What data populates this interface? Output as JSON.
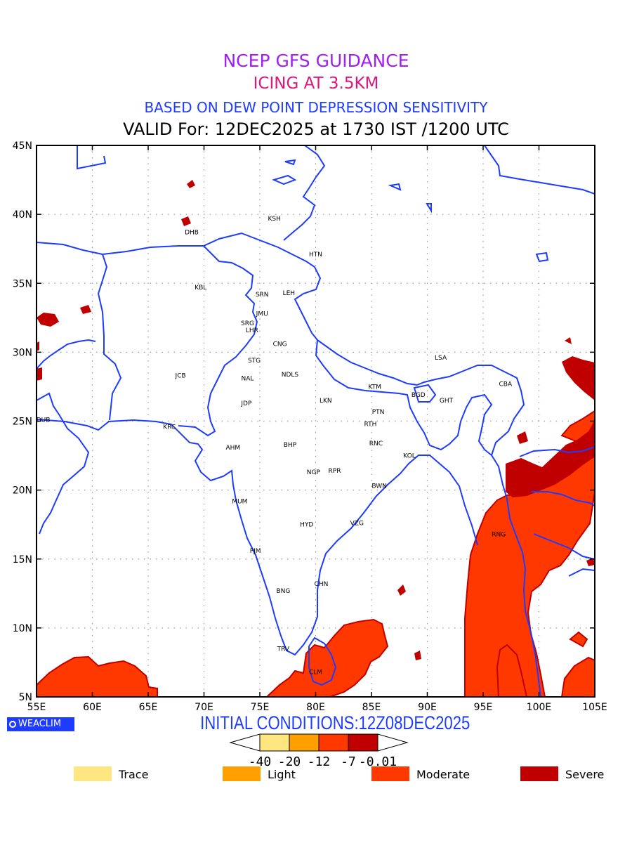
{
  "header": {
    "line1": "NCEP GFS GUIDANCE",
    "line2": "ICING AT 3.5KM",
    "line3": "BASED ON DEW POINT DEPRESSION SENSITIVITY",
    "line4": "VALID For: 12DEC2025 at 1730 IST /1200 UTC"
  },
  "map": {
    "lon_labels": [
      "55E",
      "60E",
      "65E",
      "70E",
      "75E",
      "80E",
      "85E",
      "90E",
      "95E",
      "100E",
      "105E"
    ],
    "lat_labels": [
      "5N",
      "10N",
      "15N",
      "20N",
      "25N",
      "30N",
      "35N",
      "40N",
      "45N"
    ],
    "lon_range": [
      55,
      105
    ],
    "lat_range": [
      5,
      45
    ],
    "grid": "dotted",
    "coast_color": "#1e3cff",
    "stations": [
      {
        "name": "KSH",
        "lon": 76.3,
        "lat": 39.7
      },
      {
        "name": "DHB",
        "lon": 68.9,
        "lat": 38.7
      },
      {
        "name": "HTN",
        "lon": 80.0,
        "lat": 37.1
      },
      {
        "name": "KBL",
        "lon": 69.7,
        "lat": 34.7
      },
      {
        "name": "SRN",
        "lon": 75.2,
        "lat": 34.2
      },
      {
        "name": "LEH",
        "lon": 77.6,
        "lat": 34.3
      },
      {
        "name": "JMU",
        "lon": 75.2,
        "lat": 32.8
      },
      {
        "name": "SRG",
        "lon": 73.9,
        "lat": 32.1
      },
      {
        "name": "LHR",
        "lon": 74.3,
        "lat": 31.6
      },
      {
        "name": "CNG",
        "lon": 76.8,
        "lat": 30.6
      },
      {
        "name": "STG",
        "lon": 74.5,
        "lat": 29.4
      },
      {
        "name": "LSA",
        "lon": 91.2,
        "lat": 29.6
      },
      {
        "name": "JCB",
        "lon": 67.9,
        "lat": 28.3
      },
      {
        "name": "NAL",
        "lon": 73.9,
        "lat": 28.1
      },
      {
        "name": "NDLS",
        "lon": 77.7,
        "lat": 28.4
      },
      {
        "name": "CBA",
        "lon": 97.0,
        "lat": 27.7
      },
      {
        "name": "KTM",
        "lon": 85.3,
        "lat": 27.5
      },
      {
        "name": "BGD",
        "lon": 89.2,
        "lat": 26.9
      },
      {
        "name": "GHT",
        "lon": 91.7,
        "lat": 26.5
      },
      {
        "name": "JDP",
        "lon": 73.8,
        "lat": 26.3
      },
      {
        "name": "LKN",
        "lon": 80.9,
        "lat": 26.5
      },
      {
        "name": "PTN",
        "lon": 85.6,
        "lat": 25.7
      },
      {
        "name": "DUB",
        "lon": 55.6,
        "lat": 25.1
      },
      {
        "name": "RTH",
        "lon": 84.9,
        "lat": 24.8
      },
      {
        "name": "KRC",
        "lon": 66.9,
        "lat": 24.6
      },
      {
        "name": "BHP",
        "lon": 77.7,
        "lat": 23.3
      },
      {
        "name": "RNC",
        "lon": 85.4,
        "lat": 23.4
      },
      {
        "name": "AHM",
        "lon": 72.6,
        "lat": 23.1
      },
      {
        "name": "KOL",
        "lon": 88.4,
        "lat": 22.5
      },
      {
        "name": "NGP",
        "lon": 79.8,
        "lat": 21.3
      },
      {
        "name": "RPR",
        "lon": 81.7,
        "lat": 21.4
      },
      {
        "name": "BWN",
        "lon": 85.7,
        "lat": 20.3
      },
      {
        "name": "MUM",
        "lon": 73.2,
        "lat": 19.2
      },
      {
        "name": "HYD",
        "lon": 79.2,
        "lat": 17.5
      },
      {
        "name": "VZG",
        "lon": 83.7,
        "lat": 17.6
      },
      {
        "name": "RNG",
        "lon": 96.4,
        "lat": 16.8
      },
      {
        "name": "PJM",
        "lon": 74.6,
        "lat": 15.6
      },
      {
        "name": "CHN",
        "lon": 80.5,
        "lat": 13.2
      },
      {
        "name": "BNG",
        "lon": 77.1,
        "lat": 12.7
      },
      {
        "name": "TRV",
        "lon": 77.1,
        "lat": 8.5
      },
      {
        "name": "CLM",
        "lon": 80.0,
        "lat": 6.8
      }
    ]
  },
  "footer": {
    "logo_text": "WEACLIM",
    "initial_conditions": "INITIAL CONDITIONS:12Z08DEC2025",
    "colorbar_labels": [
      "-40",
      "-20",
      "-12",
      "-7",
      "-0.01"
    ],
    "colorbar_colors": [
      "#ffe680",
      "#ffa000",
      "#ff3800",
      "#c00000"
    ],
    "legend": [
      {
        "label": "Trace",
        "color": "#ffe680"
      },
      {
        "label": "Light",
        "color": "#ffa000"
      },
      {
        "label": "Moderate",
        "color": "#ff3800"
      },
      {
        "label": "Severe",
        "color": "#c00000"
      }
    ]
  }
}
